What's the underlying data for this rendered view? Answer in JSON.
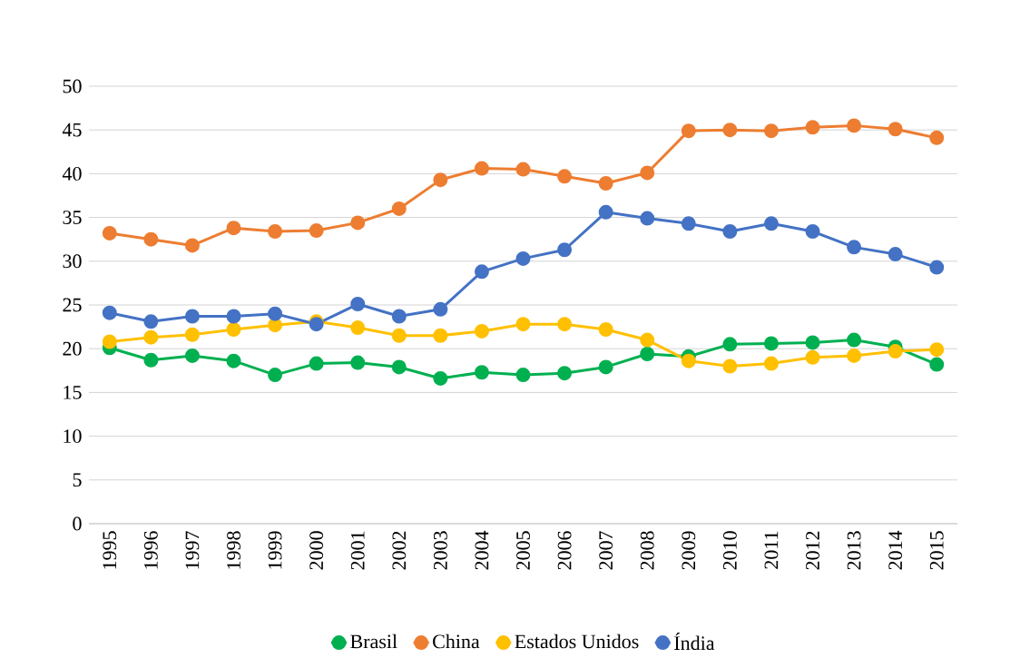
{
  "chart_data": {
    "type": "line",
    "categories": [
      "1995",
      "1996",
      "1997",
      "1998",
      "1999",
      "2000",
      "2001",
      "2002",
      "2003",
      "2004",
      "2005",
      "2006",
      "2007",
      "2008",
      "2009",
      "2010",
      "2011",
      "2012",
      "2013",
      "2014",
      "2015"
    ],
    "series": [
      {
        "name": "Brasil",
        "color": "#00b050",
        "values": [
          20.1,
          18.7,
          19.2,
          18.6,
          17.0,
          18.3,
          18.4,
          17.9,
          16.6,
          17.3,
          17.0,
          17.2,
          17.9,
          19.4,
          19.1,
          20.5,
          20.6,
          20.7,
          21.0,
          20.2,
          18.2
        ]
      },
      {
        "name": "China",
        "color": "#ed7d31",
        "values": [
          33.2,
          32.5,
          31.8,
          33.8,
          33.4,
          33.5,
          34.4,
          36.0,
          39.3,
          40.6,
          40.5,
          39.7,
          38.9,
          40.1,
          44.9,
          45.0,
          44.9,
          45.3,
          45.5,
          45.1,
          44.1
        ]
      },
      {
        "name": "Estados Unidos",
        "color": "#ffc000",
        "values": [
          20.8,
          21.3,
          21.6,
          22.2,
          22.7,
          23.1,
          22.4,
          21.5,
          21.5,
          22.0,
          22.8,
          22.8,
          22.2,
          21.0,
          18.6,
          18.0,
          18.3,
          19.0,
          19.2,
          19.7,
          19.9
        ]
      },
      {
        "name": "Índia",
        "color": "#4472c4",
        "values": [
          24.1,
          23.1,
          23.7,
          23.7,
          24.0,
          22.8,
          25.1,
          23.7,
          24.5,
          28.8,
          30.3,
          31.3,
          35.6,
          34.9,
          34.3,
          33.4,
          34.3,
          33.4,
          31.6,
          30.8,
          29.3
        ]
      }
    ],
    "ylim": [
      0,
      50
    ],
    "yticks": [
      0,
      5,
      10,
      15,
      20,
      25,
      30,
      35,
      40,
      45,
      50
    ],
    "grid": "y",
    "legend": "bottom",
    "marker": "circle",
    "line_style": "solid"
  }
}
